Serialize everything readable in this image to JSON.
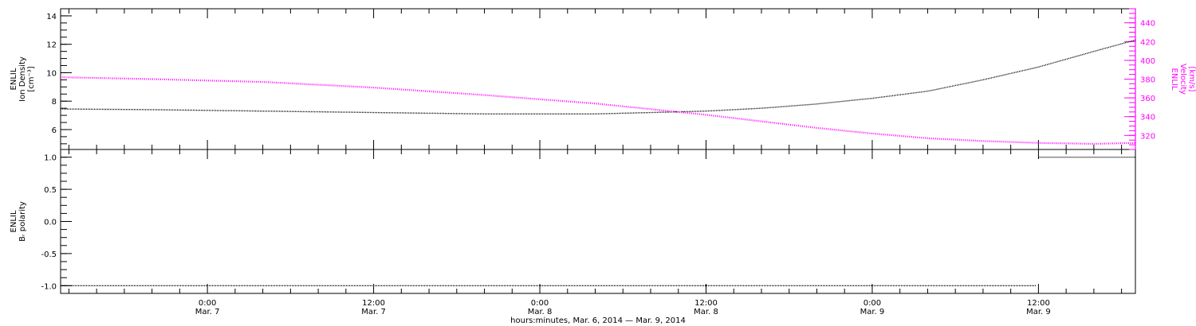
{
  "chart_data": {
    "type": "scatter",
    "x_axis_title": "hours:minutes, Mar.  6, 2014  —  Mar.  9, 2014",
    "x_ticks": [
      {
        "label_time": "0:00",
        "label_date": "Mar. 7",
        "hour": 24
      },
      {
        "label_time": "12:00",
        "label_date": "Mar. 7",
        "hour": 36
      },
      {
        "label_time": "0:00",
        "label_date": "Mar. 8",
        "hour": 48
      },
      {
        "label_time": "12:00",
        "label_date": "Mar. 8",
        "hour": 60
      },
      {
        "label_time": "0:00",
        "label_date": "Mar. 9",
        "hour": 72
      },
      {
        "label_time": "12:00",
        "label_date": "Mar. 9",
        "hour": 84
      }
    ],
    "xlim_hours": [
      13.4,
      91.0
    ],
    "panels": [
      {
        "id": "top",
        "left_axis": {
          "title_lines": [
            "ENLIL",
            "Ion Density",
            "[cm⁻³]"
          ],
          "ylim": [
            4.6,
            14.5
          ],
          "ticks": [
            6,
            8,
            10,
            12,
            14
          ],
          "tick_labels": [
            "6",
            "8",
            "10",
            "12",
            "14"
          ],
          "color": "#000000"
        },
        "right_axis": {
          "title_lines": [
            "ENLIL",
            "Velocity",
            "[km/s]"
          ],
          "ylim": [
            305,
            455
          ],
          "ticks": [
            320,
            340,
            360,
            380,
            400,
            420,
            440
          ],
          "tick_labels": [
            "320",
            "340",
            "360",
            "380",
            "400",
            "420",
            "440"
          ],
          "color": "#ff00ff"
        },
        "series": [
          {
            "axis": "left",
            "color": "#000000",
            "points": [
              [
                13.4,
                7.45
              ],
              [
                20,
                7.4
              ],
              [
                28,
                7.3
              ],
              [
                36,
                7.2
              ],
              [
                44,
                7.1
              ],
              [
                52,
                7.1
              ],
              [
                56,
                7.2
              ],
              [
                60,
                7.3
              ],
              [
                64,
                7.5
              ],
              [
                68,
                7.8
              ],
              [
                72,
                8.2
              ],
              [
                76,
                8.7
              ],
              [
                80,
                9.5
              ],
              [
                84,
                10.4
              ],
              [
                88,
                11.5
              ],
              [
                91,
                12.3
              ]
            ]
          },
          {
            "axis": "right",
            "color": "#ff00ff",
            "points": [
              [
                13.4,
                382
              ],
              [
                20,
                380
              ],
              [
                28,
                377
              ],
              [
                36,
                371
              ],
              [
                44,
                363
              ],
              [
                52,
                354
              ],
              [
                56,
                348
              ],
              [
                60,
                342
              ],
              [
                64,
                335
              ],
              [
                68,
                328
              ],
              [
                72,
                322
              ],
              [
                76,
                317
              ],
              [
                80,
                314
              ],
              [
                84,
                312
              ],
              [
                88,
                311
              ],
              [
                91,
                312
              ]
            ]
          }
        ]
      },
      {
        "id": "bottom",
        "left_axis": {
          "title_lines": [
            "ENLIL",
            "Bᵣ polarity"
          ],
          "ylim": [
            -1.12,
            1.12
          ],
          "ticks": [
            -1.0,
            -0.5,
            0.0,
            0.5,
            1.0
          ],
          "tick_labels": [
            "-1.0",
            "-0.5",
            "0.0",
            "0.5",
            "1.0"
          ],
          "color": "#000000"
        },
        "series": [
          {
            "axis": "left",
            "color": "#000000",
            "points": [
              [
                13.4,
                -1
              ],
              [
                83.8,
                -1
              ]
            ]
          },
          {
            "axis": "left",
            "color": "#000000",
            "points": [
              [
                84.0,
                1
              ],
              [
                91,
                1
              ]
            ]
          }
        ]
      }
    ]
  }
}
